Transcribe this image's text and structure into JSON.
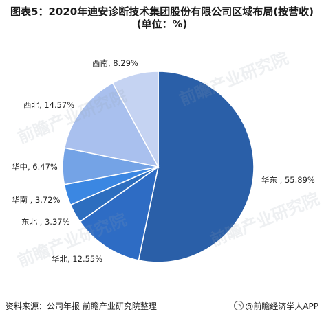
{
  "title": "图表5：2020年迪安诊断技术集团股份有限公司区域布局(按营收)(单位：%)",
  "footer": {
    "source": "资料来源：公司年报 前瞻产业研究院整理",
    "brand": "@前瞻经济学人APP",
    "brand_icon": "qianzhan-logo-icon"
  },
  "watermark": "前瞻产业研究院",
  "chart_data": {
    "type": "pie",
    "title": "图表5：2020年迪安诊断技术集团股份有限公司区域布局(按营收)(单位：%)",
    "slices": [
      {
        "name": "华东",
        "value": 55.89,
        "label": "华东 , 55.89%",
        "color": "#2a5fa8"
      },
      {
        "name": "华北",
        "value": 12.55,
        "label": "华北, 12.55%",
        "color": "#2e6cc4"
      },
      {
        "name": "东北",
        "value": 3.37,
        "label": "东北 , 3.37%",
        "color": "#2d6ebf"
      },
      {
        "name": "华南",
        "value": 3.72,
        "label": "华南 , 3.72%",
        "color": "#3b87e2"
      },
      {
        "name": "华中",
        "value": 6.47,
        "label": "华中, 6.47%",
        "color": "#74a3e6"
      },
      {
        "name": "西北",
        "value": 14.57,
        "label": "西北, 14.57%",
        "color": "#a9c0ee"
      },
      {
        "name": "西南",
        "value": 8.29,
        "label": "西南, 8.29%",
        "color": "#c5d3f2"
      }
    ],
    "start_angle_deg": 0,
    "direction": "clockwise"
  }
}
